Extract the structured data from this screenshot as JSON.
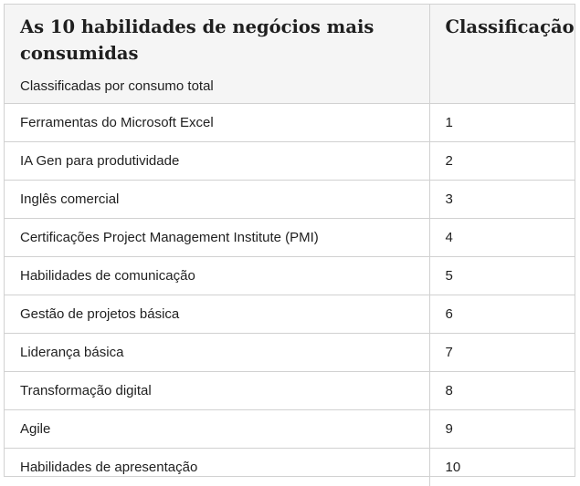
{
  "table": {
    "title": "As 10 habilidades de negócios mais consumidas",
    "subtitle": "Classificadas por consumo total",
    "rank_header": "Classificação",
    "rows": [
      {
        "skill": "Ferramentas do Microsoft Excel",
        "rank": "1"
      },
      {
        "skill": "IA Gen para produtividade",
        "rank": "2"
      },
      {
        "skill": "Inglês comercial",
        "rank": "3"
      },
      {
        "skill": "Certificações Project Management Institute (PMI)",
        "rank": "4"
      },
      {
        "skill": "Habilidades de comunicação",
        "rank": "5"
      },
      {
        "skill": "Gestão de projetos básica",
        "rank": "6"
      },
      {
        "skill": "Liderança básica",
        "rank": "7"
      },
      {
        "skill": "Transformação digital",
        "rank": "8"
      },
      {
        "skill": "Agile",
        "rank": "9"
      },
      {
        "skill": "Habilidades de apresentação",
        "rank": "10"
      }
    ]
  },
  "colors": {
    "header_background": "#f5f5f5",
    "border": "#d1d1d1",
    "text": "#1f1f1f"
  }
}
